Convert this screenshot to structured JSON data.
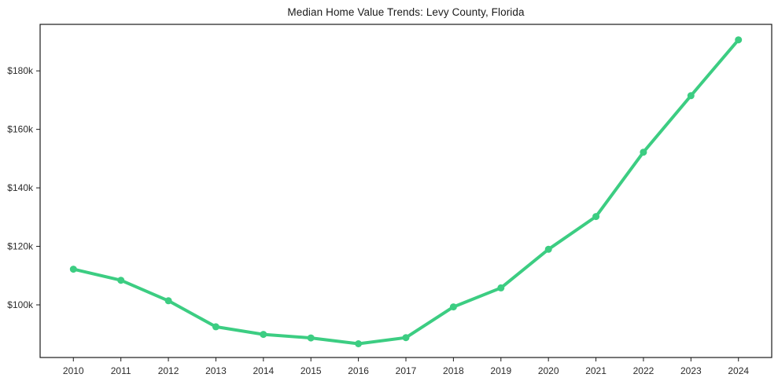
{
  "chart_data": {
    "type": "line",
    "title": "Median Home Value Trends: Levy County, Florida",
    "xlabel": "",
    "ylabel": "",
    "x": [
      2010,
      2011,
      2012,
      2013,
      2014,
      2015,
      2016,
      2017,
      2018,
      2019,
      2020,
      2021,
      2022,
      2023,
      2024
    ],
    "series": [
      {
        "name": "Median Home Value",
        "values": [
          112200,
          108400,
          101400,
          92500,
          89900,
          88700,
          86700,
          88800,
          99300,
          105800,
          119000,
          130200,
          152200,
          171500,
          190600
        ]
      }
    ],
    "x_tick_labels": [
      "2010",
      "2011",
      "2012",
      "2013",
      "2014",
      "2015",
      "2016",
      "2017",
      "2018",
      "2019",
      "2020",
      "2021",
      "2022",
      "2023",
      "2024"
    ],
    "y_ticks": [
      {
        "value": 100000,
        "label": "$100k"
      },
      {
        "value": 120000,
        "label": "$120k"
      },
      {
        "value": 140000,
        "label": "$140k"
      },
      {
        "value": 160000,
        "label": "$160k"
      },
      {
        "value": 180000,
        "label": "$180k"
      }
    ],
    "xlim": [
      2009.3,
      2024.7
    ],
    "ylim": [
      82000,
      195900
    ],
    "grid": false,
    "legend": "none",
    "colors": {
      "line": "#3ccd82",
      "marker": "#3ccd82",
      "spine": "#1a1a1a",
      "tick_label": "#2b2b2b",
      "background": "#ffffff"
    },
    "line_width": 4,
    "marker_radius": 4.5
  }
}
